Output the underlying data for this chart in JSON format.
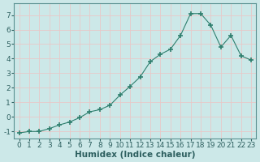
{
  "x": [
    0,
    1,
    2,
    3,
    4,
    5,
    6,
    7,
    8,
    9,
    10,
    11,
    12,
    13,
    14,
    15,
    16,
    17,
    18,
    19,
    20,
    21,
    22,
    23
  ],
  "y": [
    -1.1,
    -1.0,
    -1.0,
    -0.8,
    -0.55,
    -0.35,
    -0.05,
    0.35,
    0.5,
    0.8,
    1.5,
    2.1,
    2.75,
    3.8,
    4.3,
    4.65,
    5.6,
    7.1,
    7.1,
    6.3,
    4.8,
    5.6,
    4.2,
    3.9
  ],
  "xlabel": "Humidex (Indice chaleur)",
  "ylabel": "",
  "ylim": [
    -1.5,
    7.8
  ],
  "xlim": [
    -0.5,
    23.5
  ],
  "line_color": "#2e7f6e",
  "marker_color": "#2e7f6e",
  "bg_color": "#cce8e8",
  "grid_color": "#e8c8c8",
  "title": "",
  "xtick_labels": [
    "0",
    "1",
    "2",
    "3",
    "4",
    "5",
    "6",
    "7",
    "8",
    "9",
    "10",
    "11",
    "12",
    "13",
    "14",
    "15",
    "16",
    "17",
    "18",
    "19",
    "20",
    "21",
    "22",
    "23"
  ],
  "yticks": [
    -1,
    0,
    1,
    2,
    3,
    4,
    5,
    6,
    7
  ],
  "xlabel_fontsize": 7.5,
  "tick_fontsize": 6.5
}
